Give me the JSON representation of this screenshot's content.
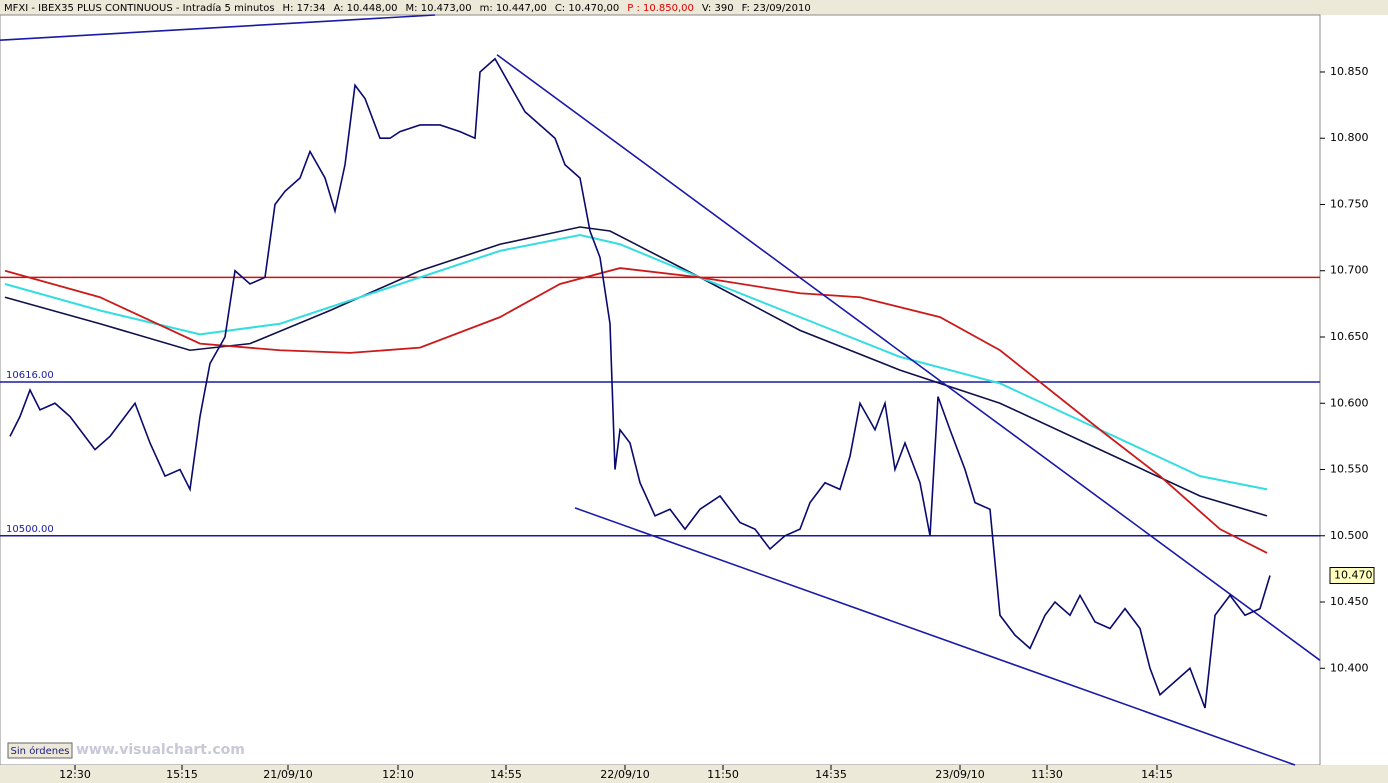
{
  "chart_data": {
    "type": "line",
    "header": {
      "parts": [
        "MFXI - IBEX35 PLUS CONTINUOUS - Intradía 5 minutos",
        "H: 17:34",
        "A: 10.448,00",
        "M: 10.473,00",
        "m: 10.447,00",
        "C: 10.470,00"
      ],
      "alert": "P : 10.850,00",
      "tail": [
        "V: 390",
        "F: 23/09/2010"
      ]
    },
    "watermark": "www.visualchart.com",
    "button": "Sin órdenes",
    "xlim": [
      0,
      1320
    ],
    "ylim": [
      10.327,
      10.893
    ],
    "xticks": [
      {
        "value": 75,
        "label": "12:30"
      },
      {
        "value": 182,
        "label": "15:15"
      },
      {
        "value": 288,
        "label": "21/09/10"
      },
      {
        "value": 398,
        "label": "12:10"
      },
      {
        "value": 506,
        "label": "14:55"
      },
      {
        "value": 625,
        "label": "22/09/10"
      },
      {
        "value": 723,
        "label": "11:50"
      },
      {
        "value": 831,
        "label": "14:35"
      },
      {
        "value": 960,
        "label": "23/09/10"
      },
      {
        "value": 1047,
        "label": "11:30"
      },
      {
        "value": 1157,
        "label": "14:15"
      }
    ],
    "yticks": [
      {
        "value": 10.4,
        "label": "10.400"
      },
      {
        "value": 10.45,
        "label": "10.450"
      },
      {
        "value": 10.5,
        "label": "10.500"
      },
      {
        "value": 10.55,
        "label": "10.550"
      },
      {
        "value": 10.6,
        "label": "10.600"
      },
      {
        "value": 10.65,
        "label": "10.650"
      },
      {
        "value": 10.7,
        "label": "10.700"
      },
      {
        "value": 10.75,
        "label": "10.750"
      },
      {
        "value": 10.8,
        "label": "10.800"
      },
      {
        "value": 10.85,
        "label": "10.850"
      }
    ],
    "series": [
      {
        "color": "#0a0a6e",
        "width": 1.6,
        "x": [
          10,
          20,
          30,
          40,
          55,
          70,
          85,
          95,
          110,
          125,
          135,
          150,
          165,
          180,
          190,
          200,
          210,
          225,
          235,
          250,
          265,
          275,
          285,
          300,
          310,
          325,
          335,
          345,
          355,
          365,
          380,
          390,
          400,
          420,
          440,
          460,
          475,
          480,
          495,
          510,
          525,
          540,
          555,
          565,
          580,
          590,
          600,
          610,
          615,
          620,
          630,
          640,
          655,
          670,
          685,
          700,
          720,
          740,
          755,
          770,
          785,
          800,
          810,
          825,
          840,
          850,
          860,
          875,
          885,
          895,
          905,
          920,
          930,
          938,
          950,
          965,
          975,
          990,
          1000,
          1015,
          1030,
          1045,
          1055,
          1070,
          1080,
          1095,
          1110,
          1125,
          1140,
          1150,
          1160,
          1175,
          1190,
          1205,
          1215,
          1230,
          1245,
          1260,
          1270
        ],
        "values": [
          10.575,
          10.59,
          10.61,
          10.595,
          10.6,
          10.59,
          10.575,
          10.565,
          10.575,
          10.59,
          10.6,
          10.57,
          10.545,
          10.55,
          10.535,
          10.59,
          10.63,
          10.65,
          10.7,
          10.69,
          10.695,
          10.75,
          10.76,
          10.77,
          10.79,
          10.77,
          10.745,
          10.78,
          10.84,
          10.83,
          10.8,
          10.8,
          10.805,
          10.81,
          10.81,
          10.805,
          10.8,
          10.85,
          10.86,
          10.84,
          10.82,
          10.81,
          10.8,
          10.78,
          10.77,
          10.73,
          10.71,
          10.66,
          10.55,
          10.58,
          10.57,
          10.54,
          10.515,
          10.52,
          10.505,
          10.52,
          10.53,
          10.51,
          10.505,
          10.49,
          10.5,
          10.505,
          10.525,
          10.54,
          10.535,
          10.56,
          10.6,
          10.58,
          10.6,
          10.55,
          10.57,
          10.54,
          10.5,
          10.605,
          10.58,
          10.55,
          10.525,
          10.52,
          10.44,
          10.425,
          10.415,
          10.44,
          10.45,
          10.44,
          10.455,
          10.435,
          10.43,
          10.445,
          10.43,
          10.4,
          10.38,
          10.39,
          10.4,
          10.37,
          10.44,
          10.455,
          10.44,
          10.445,
          10.47
        ]
      },
      {
        "color": "#10104a",
        "width": 1.6,
        "x": [
          5,
          100,
          190,
          250,
          330,
          420,
          500,
          580,
          610,
          700,
          800,
          900,
          1000,
          1100,
          1200,
          1267
        ],
        "values": [
          10.68,
          10.66,
          10.64,
          10.645,
          10.67,
          10.7,
          10.72,
          10.733,
          10.73,
          10.695,
          10.655,
          10.625,
          10.6,
          10.565,
          10.53,
          10.515
        ]
      },
      {
        "color": "#33dde0",
        "width": 2,
        "x": [
          5,
          100,
          200,
          280,
          400,
          500,
          580,
          620,
          700,
          800,
          900,
          1000,
          1100,
          1200,
          1267
        ],
        "values": [
          10.69,
          10.67,
          10.652,
          10.66,
          10.69,
          10.715,
          10.727,
          10.72,
          10.695,
          10.665,
          10.635,
          10.615,
          10.58,
          10.545,
          10.535
        ]
      },
      {
        "color": "#cc1a1a",
        "width": 1.8,
        "x": [
          5,
          100,
          200,
          280,
          350,
          420,
          500,
          560,
          620,
          700,
          800,
          860,
          940,
          1000,
          1100,
          1160,
          1220,
          1267
        ],
        "values": [
          10.7,
          10.68,
          10.645,
          10.64,
          10.638,
          10.642,
          10.665,
          10.69,
          10.702,
          10.695,
          10.683,
          10.68,
          10.665,
          10.64,
          10.58,
          10.545,
          10.505,
          10.487
        ]
      }
    ],
    "trendlines": [
      {
        "color": "#1a1aa8",
        "x": [
          0,
          435
        ],
        "values": [
          10.874,
          10.893
        ]
      },
      {
        "color": "#1a1aa8",
        "x": [
          497,
          1320
        ],
        "values": [
          10.863,
          10.406
        ]
      },
      {
        "color": "#1a1aa8",
        "x": [
          575,
          1295
        ],
        "values": [
          10.521,
          10.327
        ]
      }
    ],
    "levels": [
      {
        "value": 10.695,
        "color": "#d01010"
      },
      {
        "value": 10.616,
        "label": "10616.00",
        "color": "#1a1aa8"
      },
      {
        "value": 10.5,
        "label": "10500.00",
        "color": "#1a1aa8"
      }
    ],
    "last": {
      "value": 10.47,
      "label": "10.470"
    }
  }
}
